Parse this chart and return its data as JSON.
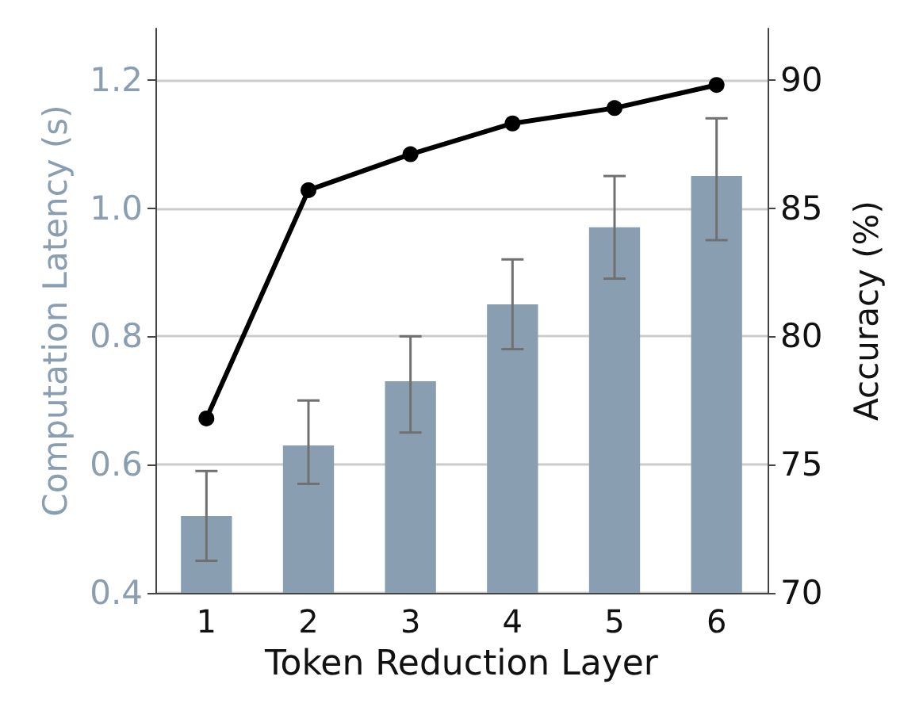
{
  "chart_data": {
    "type": "bar",
    "xlabel": "Token Reduction Layer",
    "ylabel": "Computation Latency (s)",
    "y2label": "Accuracy (%)",
    "categories": [
      "1",
      "2",
      "3",
      "4",
      "5",
      "6"
    ],
    "series": [
      {
        "color": "#8a9eb2",
        "values": [
          0.52,
          0.63,
          0.73,
          0.85,
          0.97,
          1.05
        ],
        "errors": [
          [
            0.45,
            0.59
          ],
          [
            0.57,
            0.7
          ],
          [
            0.65,
            0.8
          ],
          [
            0.78,
            0.92
          ],
          [
            0.89,
            1.05
          ],
          [
            0.95,
            1.14
          ]
        ]
      },
      {
        "type": "line",
        "axis": "y2",
        "color": "#000000",
        "values": [
          76.8,
          85.7,
          87.1,
          88.3,
          88.9,
          89.8
        ]
      }
    ],
    "ylim": [
      0.4,
      1.28
    ],
    "yticks": [
      0.4,
      0.6,
      0.8,
      {
        "value": 1,
        "label": "1.0"
      },
      1.2
    ],
    "y2lim": [
      70,
      92
    ],
    "y2ticks": [
      70,
      75,
      80,
      85,
      90
    ],
    "grid": "y",
    "marker": "circle",
    "line_style": "solid"
  }
}
